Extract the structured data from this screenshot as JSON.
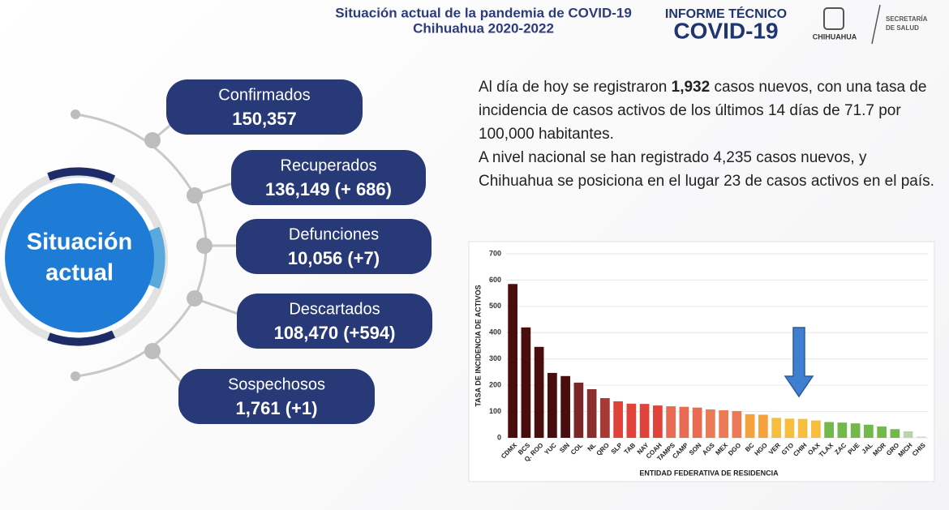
{
  "header": {
    "title_line1": "Situación actual de la pandemia de COVID-19",
    "title_line2": "Chihuahua 2020-2022",
    "brand_line1": "INFORME TÉCNICO",
    "brand_line2": "COVID-19",
    "logo_text": "CHIHUAHUA",
    "agency_line1": "SECRETARÍA",
    "agency_line2": "DE SALUD"
  },
  "center_label": {
    "line1": "Situación",
    "line2": "actual"
  },
  "stats": [
    {
      "label": "Confirmados",
      "value": "150,357"
    },
    {
      "label": "Recuperados",
      "value": "136,149 (+ 686)"
    },
    {
      "label": "Defunciones",
      "value": "10,056 (+7)"
    },
    {
      "label": "Descartados",
      "value": "108,470 (+594)"
    },
    {
      "label": "Sospechosos",
      "value": "1,761 (+1)"
    }
  ],
  "summary": {
    "paragraphs": [
      {
        "segments": [
          "Al día de hoy se registraron ",
          "1,932",
          " casos nuevos, con una tasa de incidencia de casos activos de los últimos 14 días de 71.7 por 100,000 habitantes."
        ]
      },
      {
        "segments": [
          "A nivel nacional se han registrado 4,235 casos nuevos, y Chihuahua se posiciona en el lugar 23 de casos activos en el país."
        ]
      }
    ]
  },
  "chart_data": {
    "type": "bar",
    "y_label": "TASA DE INCIDENCIA DE ACTIVOS",
    "x_label": "ENTIDAD FEDERATIVA DE RESIDENCIA",
    "categories": [
      "CDMX",
      "BCS",
      "Q. ROO",
      "YUC",
      "SIN",
      "COL",
      "NL",
      "QRO",
      "SLP",
      "TAB",
      "NAY",
      "COAH",
      "TAMPS",
      "CAMP",
      "SON",
      "AGS",
      "MEX",
      "DGO",
      "BC",
      "HGO",
      "VER",
      "GTO",
      "CHIH",
      "OAX",
      "TLAX",
      "ZAC",
      "PUE",
      "JAL",
      "MOR",
      "GRO",
      "MICH",
      "CHIS"
    ],
    "values": [
      585,
      420,
      346,
      247,
      235,
      210,
      185,
      151,
      139,
      130,
      129,
      123,
      120,
      118,
      115,
      108,
      105,
      102,
      90,
      88,
      76,
      73,
      72,
      66,
      60,
      58,
      55,
      50,
      43,
      33,
      25,
      5
    ],
    "colors": [
      "#4a0d0d",
      "#4a0d0d",
      "#4a0d0d",
      "#4a0d0d",
      "#4a0d0d",
      "#7a2626",
      "#8a2e2e",
      "#a73a36",
      "#e0433a",
      "#e0433a",
      "#e0433a",
      "#e0433a",
      "#e96a52",
      "#e96a52",
      "#e96a52",
      "#ec7a57",
      "#ec7a57",
      "#ec7a57",
      "#f5a23d",
      "#f5a23d",
      "#f7be3e",
      "#f7be3e",
      "#f7be3e",
      "#f7be3e",
      "#72b84b",
      "#72b84b",
      "#72b84b",
      "#72b84b",
      "#72b84b",
      "#72b84b",
      "#b8d4a8",
      "#cfe0cf"
    ],
    "ylim": [
      0,
      700
    ],
    "yticks": [
      0,
      100,
      200,
      300,
      400,
      500,
      600,
      700
    ],
    "grid": true
  }
}
